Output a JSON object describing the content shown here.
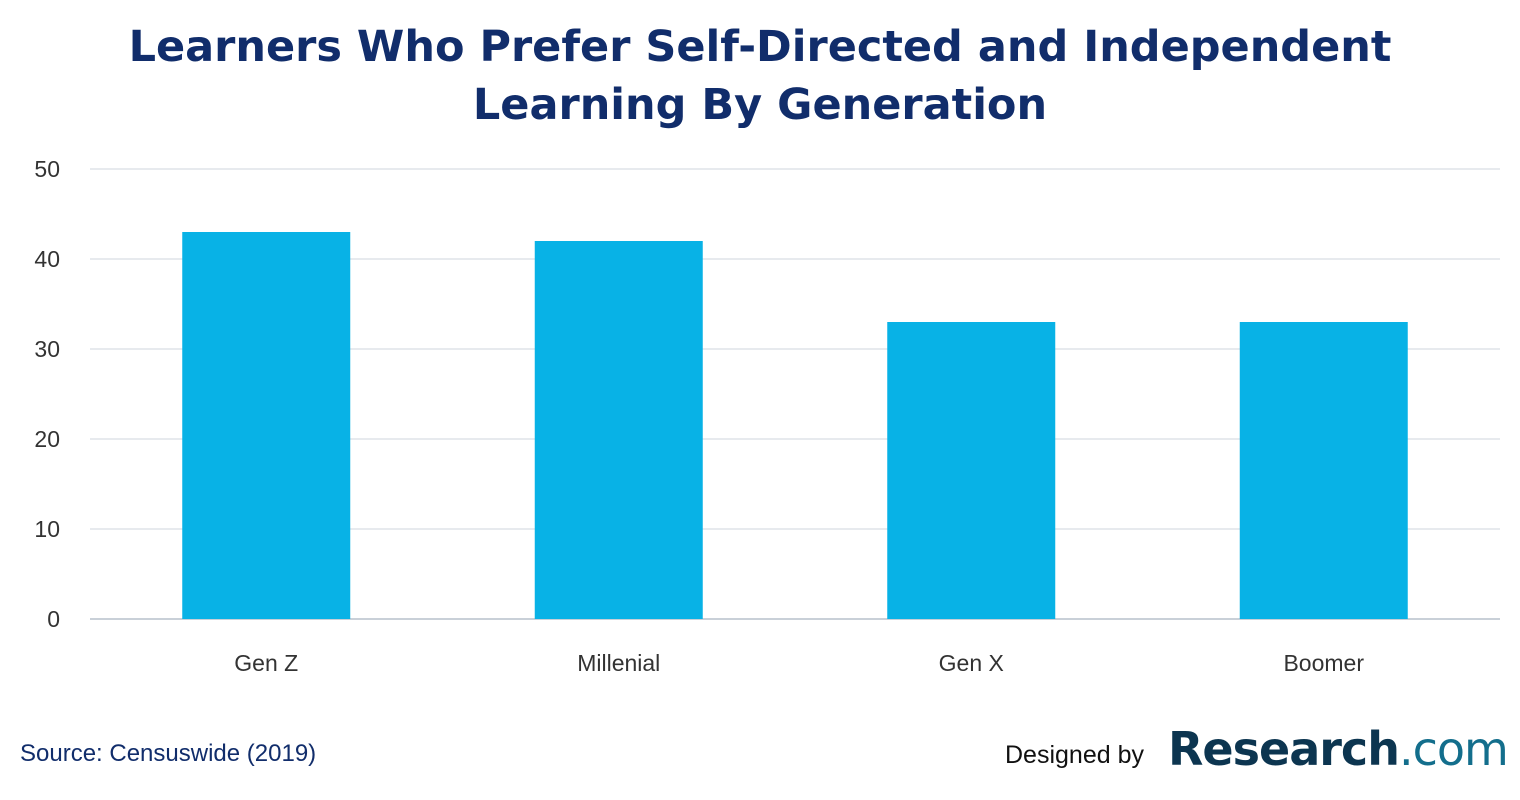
{
  "chart_data": {
    "type": "bar",
    "title": "Learners Who Prefer Self-Directed and Independent Learning By Generation",
    "title_lines": [
      "Learners Who Prefer Self-Directed and Independent",
      "Learning By Generation"
    ],
    "categories": [
      "Gen Z",
      "Millenial",
      "Gen X",
      "Boomer"
    ],
    "values": [
      43,
      42,
      33,
      33
    ],
    "xlabel": "",
    "ylabel": "",
    "ylim": [
      0,
      50
    ],
    "yticks": [
      0,
      10,
      20,
      30,
      40,
      50
    ],
    "grid": true,
    "bar_color": "#08b2e6"
  },
  "footer": {
    "source": "Source: Censuswide (2019)",
    "designed_by": "Designed by",
    "logo_main": "Research",
    "logo_suffix": ".com"
  }
}
